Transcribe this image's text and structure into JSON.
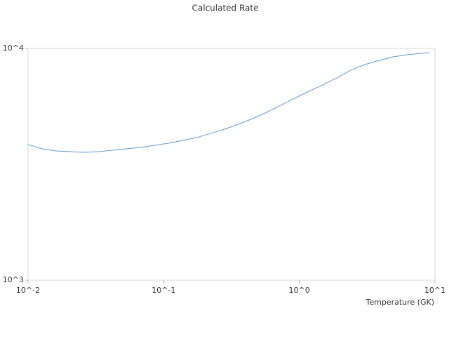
{
  "chart_data": {
    "type": "line",
    "title": "Calculated Rate",
    "x_label": "Temperature (GK)",
    "x_log": true,
    "y_log": true,
    "grid": false,
    "xlim": [
      0.01,
      10
    ],
    "ylim": [
      1000,
      10000
    ],
    "xticks": [
      {
        "value": 0.01,
        "label": "10^-2"
      },
      {
        "value": 0.1,
        "label": "10^-1"
      },
      {
        "value": 1,
        "label": "10^0"
      },
      {
        "value": 10,
        "label": "10^1"
      }
    ],
    "yticks": [
      {
        "value": 1000,
        "label": "10^3"
      },
      {
        "value": 10000,
        "label": "10^4"
      }
    ],
    "x": [
      0.01,
      0.01269,
      0.0161,
      0.02043,
      0.02593,
      0.0329,
      0.04175,
      0.05298,
      0.06723,
      0.0853,
      0.1083,
      0.1374,
      0.1743,
      0.2212,
      0.2807,
      0.3562,
      0.452,
      0.5736,
      0.7278,
      0.9237,
      1.172,
      1.487,
      1.887,
      2.394,
      3.039,
      3.856,
      4.893,
      6.21,
      7.88,
      9.09
    ],
    "series": [
      {
        "color": "#5b9bd5",
        "values": [
          3846,
          3687,
          3610,
          3584,
          3560,
          3584,
          3636,
          3687,
          3738,
          3817,
          3898,
          4008,
          4121,
          4297,
          4482,
          4706,
          4977,
          5300,
          5682,
          6095,
          6533,
          6955,
          7459,
          8056,
          8517,
          8872,
          9197,
          9391,
          9524,
          9590
        ]
      }
    ]
  }
}
